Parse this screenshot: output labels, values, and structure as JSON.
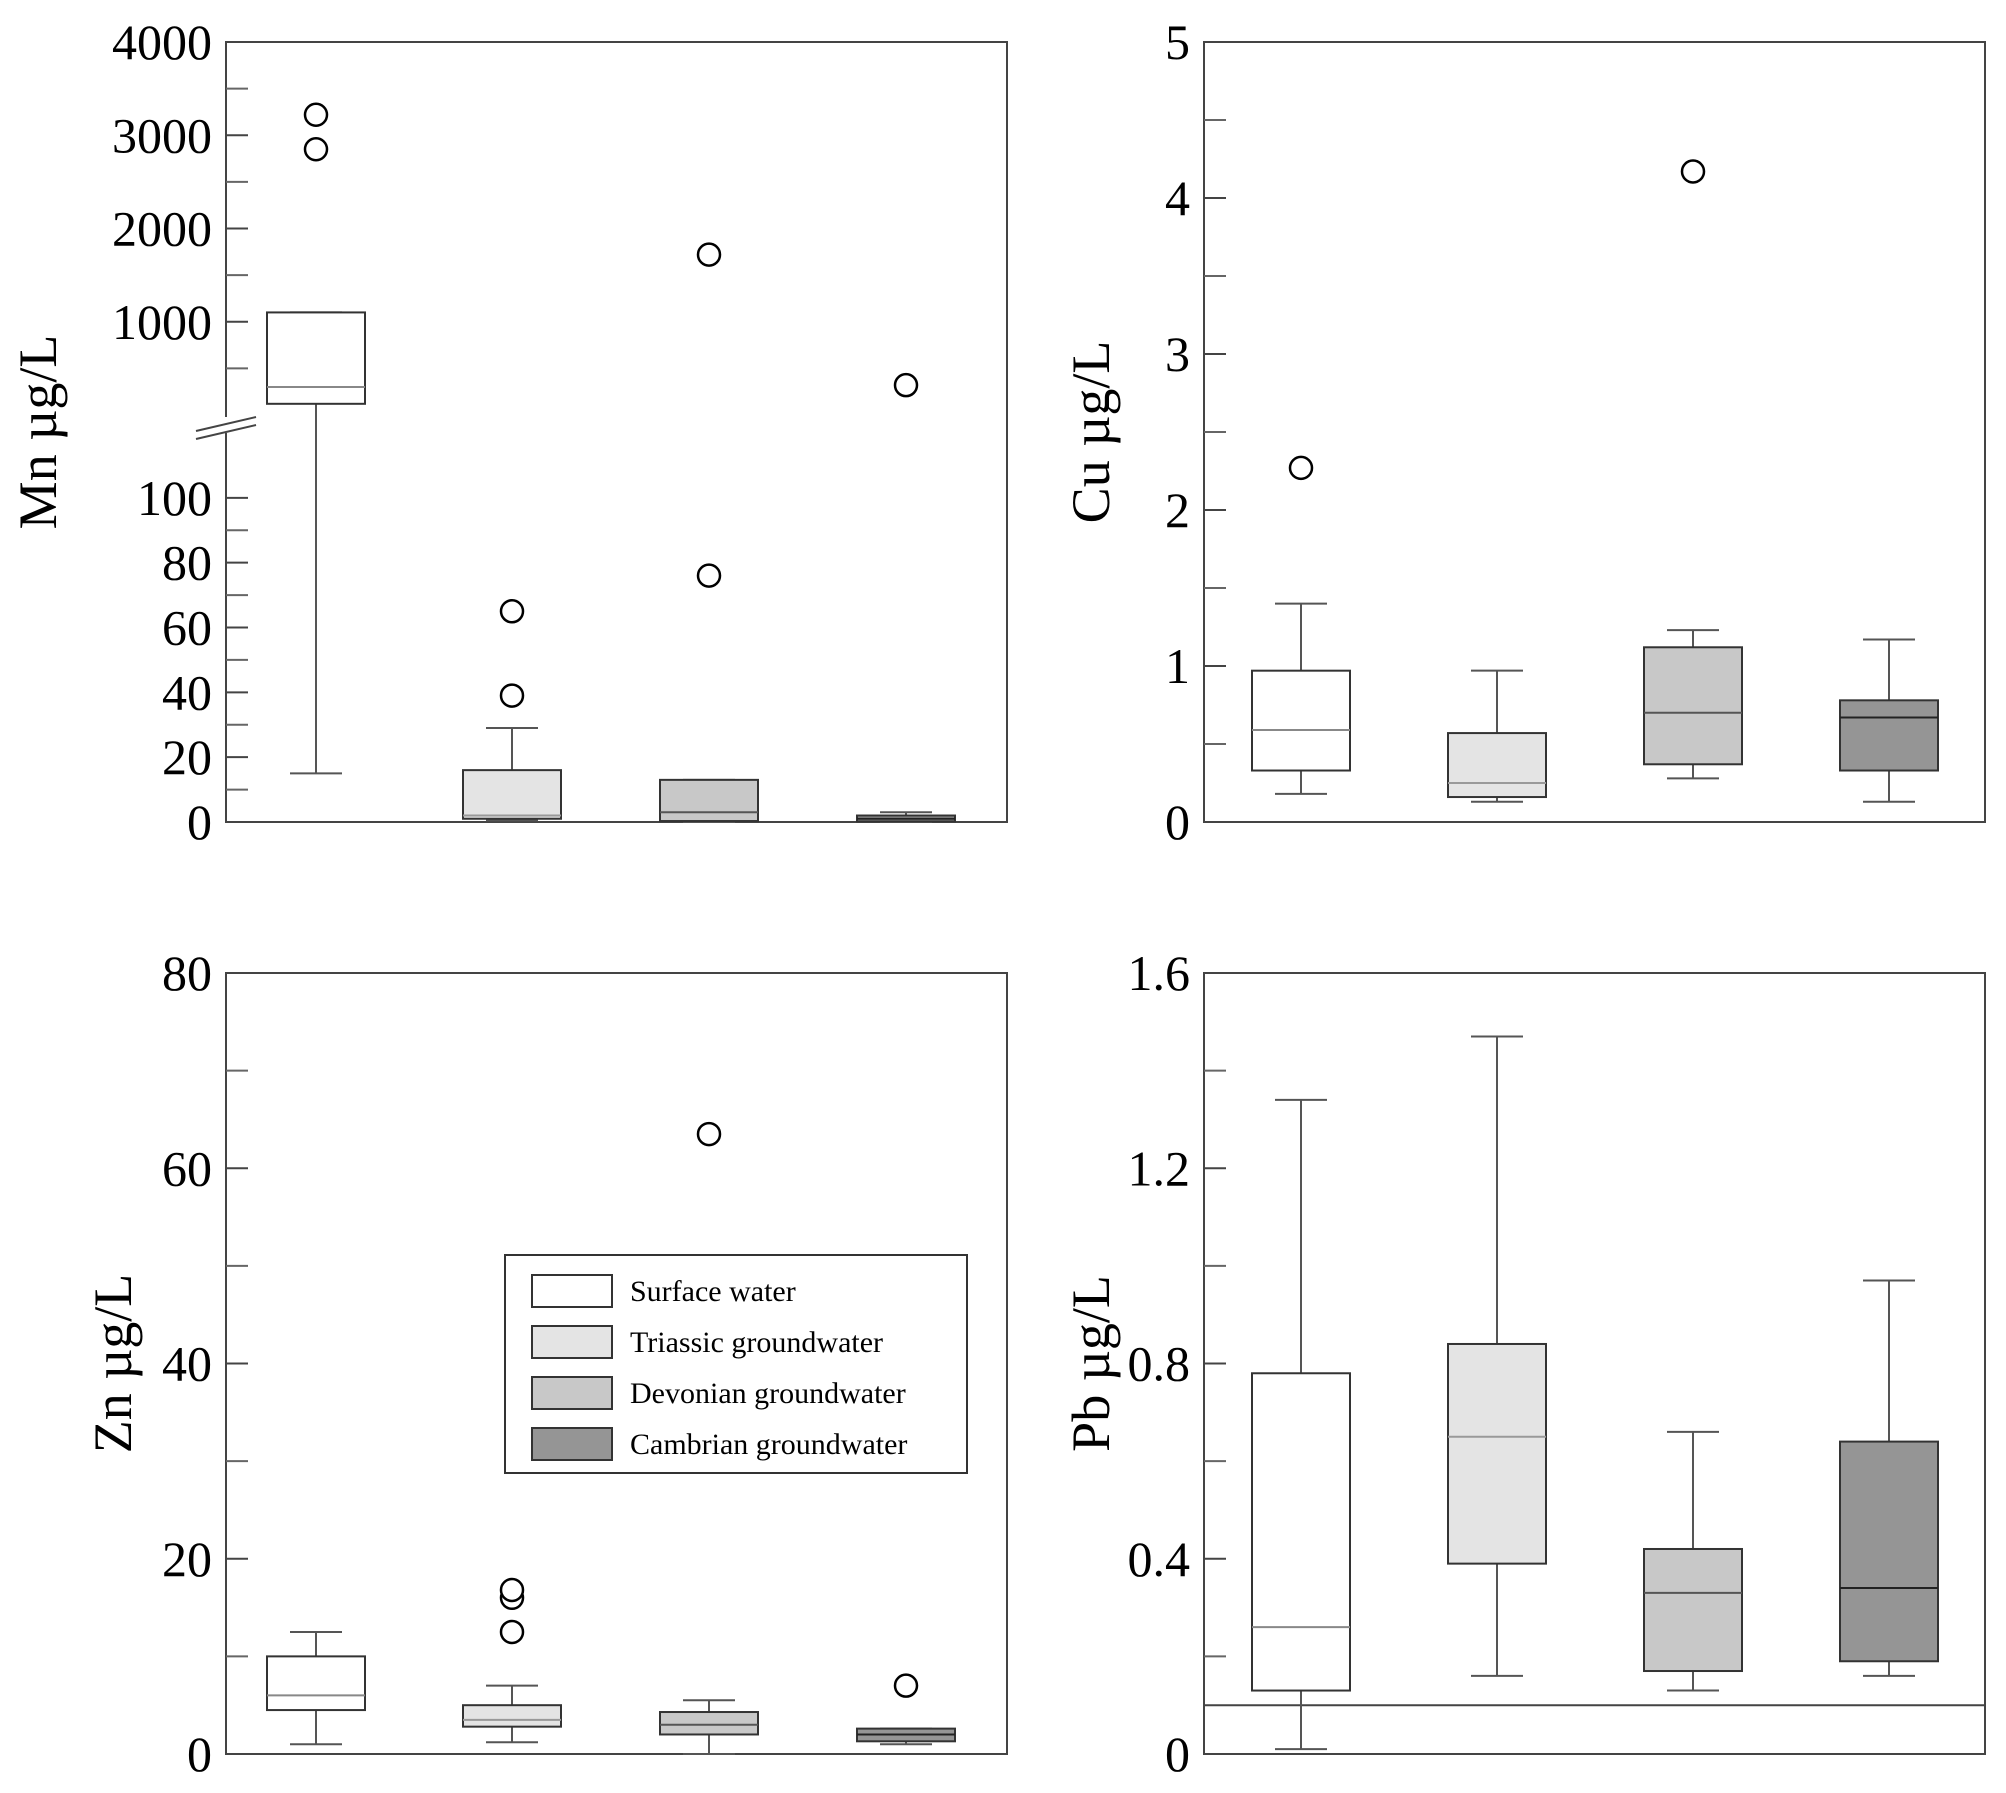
{
  "colors": {
    "surface_water": "#ffffff",
    "triassic": "#e4e4e4",
    "devonian": "#c8c8c8",
    "cambrian": "#959595",
    "frame": "#444444",
    "whisker": "#555555"
  },
  "chart_data": [
    {
      "id": "mn",
      "type": "box",
      "ylabel": "Mn µg/L",
      "broken_axis": true,
      "ylim_lower": [
        0,
        120
      ],
      "ylim_upper": [
        0,
        4000
      ],
      "ytick_labels_lower": [
        "0",
        "20",
        "40",
        "60",
        "80",
        "100"
      ],
      "ytick_labels_upper": [
        "1000",
        "2000",
        "3000",
        "4000"
      ],
      "boxes": [
        {
          "group": "Surface water",
          "whisker_low": 15,
          "q1": 120,
          "median": 300,
          "q3": 1100,
          "whisker_high": 1100,
          "outliers": [
            2850,
            3220
          ]
        },
        {
          "group": "Triassic groundwater",
          "whisker_low": 0.5,
          "q1": 1,
          "median": 2,
          "q3": 16,
          "whisker_high": 29,
          "outliers": [
            39,
            65
          ]
        },
        {
          "group": "Devonian groundwater",
          "whisker_low": 0,
          "q1": 0.3,
          "median": 3,
          "q3": 13,
          "whisker_high": 13,
          "outliers": [
            76,
            1720
          ]
        },
        {
          "group": "Cambrian groundwater",
          "whisker_low": 0,
          "q1": 0.2,
          "median": 1,
          "q3": 2,
          "whisker_high": 3,
          "outliers": [
            320
          ]
        }
      ]
    },
    {
      "id": "cu",
      "type": "box",
      "ylabel": "Cu µg/L",
      "ylim": [
        0,
        5
      ],
      "yticks": [
        0,
        1,
        2,
        3,
        4,
        5
      ],
      "ytick_labels": [
        "0",
        "1",
        "2",
        "3",
        "4",
        "5"
      ],
      "boxes": [
        {
          "group": "Surface water",
          "whisker_low": 0.18,
          "q1": 0.33,
          "median": 0.59,
          "q3": 0.97,
          "whisker_high": 1.4,
          "outliers": [
            2.27
          ]
        },
        {
          "group": "Triassic groundwater",
          "whisker_low": 0.13,
          "q1": 0.16,
          "median": 0.25,
          "q3": 0.57,
          "whisker_high": 0.97,
          "outliers": []
        },
        {
          "group": "Devonian groundwater",
          "whisker_low": 0.28,
          "q1": 0.37,
          "median": 0.7,
          "q3": 1.12,
          "whisker_high": 1.23,
          "outliers": [
            4.17
          ]
        },
        {
          "group": "Cambrian groundwater",
          "whisker_low": 0.13,
          "q1": 0.33,
          "median": 0.67,
          "q3": 0.78,
          "whisker_high": 1.17,
          "outliers": []
        }
      ]
    },
    {
      "id": "zn",
      "type": "box",
      "ylabel": "Zn µg/L",
      "ylim": [
        0,
        80
      ],
      "yticks": [
        0,
        20,
        40,
        60,
        80
      ],
      "ytick_labels": [
        "0",
        "20",
        "40",
        "60",
        "80"
      ],
      "boxes": [
        {
          "group": "Surface water",
          "whisker_low": 1,
          "q1": 4.5,
          "median": 6,
          "q3": 10,
          "whisker_high": 12.5,
          "outliers": []
        },
        {
          "group": "Triassic groundwater",
          "whisker_low": 1.2,
          "q1": 2.8,
          "median": 3.5,
          "q3": 5,
          "whisker_high": 7,
          "outliers": [
            12.5,
            16,
            16.8
          ]
        },
        {
          "group": "Devonian groundwater",
          "whisker_low": 0,
          "q1": 2,
          "median": 3,
          "q3": 4.3,
          "whisker_high": 5.5,
          "outliers": [
            63.5
          ]
        },
        {
          "group": "Cambrian groundwater",
          "whisker_low": 1,
          "q1": 1.3,
          "median": 2,
          "q3": 2.6,
          "whisker_high": 2.6,
          "outliers": [
            7
          ]
        }
      ]
    },
    {
      "id": "pb",
      "type": "box",
      "ylabel": "Pb µg/L",
      "ylim": [
        0,
        1.6
      ],
      "yticks": [
        0,
        0.4,
        0.8,
        1.2,
        1.6
      ],
      "ytick_labels": [
        "0",
        "0.4",
        "0.8",
        "1.2",
        "1.6"
      ],
      "reference_line": 0.1,
      "boxes": [
        {
          "group": "Surface water",
          "whisker_low": 0.01,
          "q1": 0.13,
          "median": 0.26,
          "q3": 0.78,
          "whisker_high": 1.34,
          "outliers": []
        },
        {
          "group": "Triassic groundwater",
          "whisker_low": 0.16,
          "q1": 0.39,
          "median": 0.65,
          "q3": 0.84,
          "whisker_high": 1.47,
          "outliers": []
        },
        {
          "group": "Devonian groundwater",
          "whisker_low": 0.13,
          "q1": 0.17,
          "median": 0.33,
          "q3": 0.42,
          "whisker_high": 0.66,
          "outliers": []
        },
        {
          "group": "Cambrian groundwater",
          "whisker_low": 0.16,
          "q1": 0.19,
          "median": 0.34,
          "q3": 0.64,
          "whisker_high": 0.97,
          "outliers": []
        }
      ]
    }
  ],
  "legend": {
    "items": [
      {
        "label": "Surface water",
        "color_key": "surface_water"
      },
      {
        "label": "Triassic groundwater",
        "color_key": "triassic"
      },
      {
        "label": "Devonian groundwater",
        "color_key": "devonian"
      },
      {
        "label": "Cambrian groundwater",
        "color_key": "cambrian"
      }
    ]
  }
}
